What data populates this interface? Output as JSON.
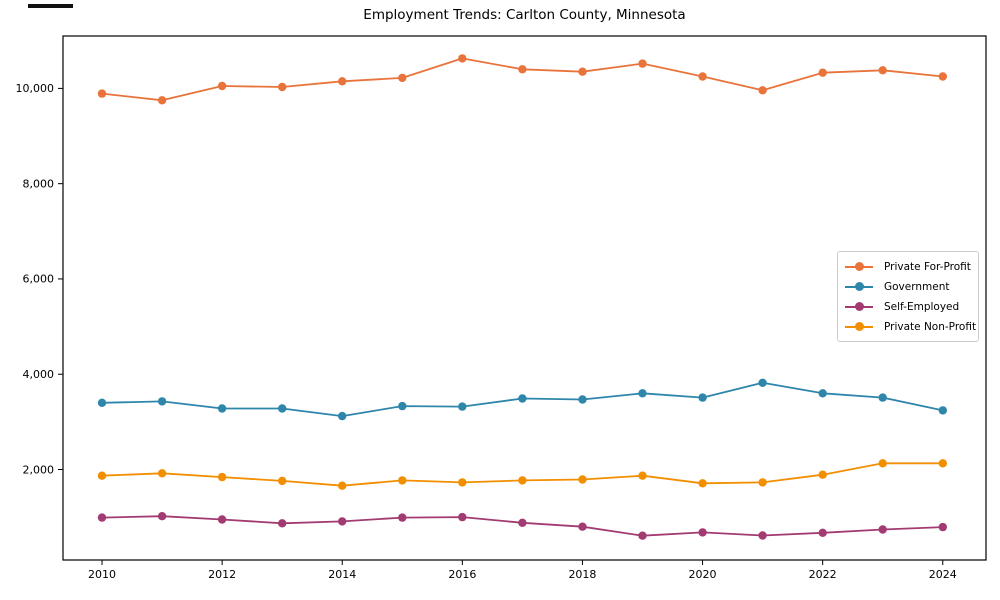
{
  "chart_data": {
    "type": "line",
    "title": "Employment Trends: Carlton County, Minnesota",
    "xlabel": "",
    "ylabel": "",
    "grid": false,
    "legend_position": "center right",
    "x": [
      2010,
      2011,
      2012,
      2013,
      2014,
      2015,
      2016,
      2017,
      2018,
      2019,
      2020,
      2021,
      2022,
      2023,
      2024
    ],
    "series": [
      {
        "name": "Private For-Profit",
        "color": "#E8743B",
        "values": [
          9890,
          9750,
          10050,
          10030,
          10150,
          10220,
          10630,
          10400,
          10350,
          10520,
          10250,
          9960,
          10330,
          10380,
          10250
        ]
      },
      {
        "name": "Government",
        "color": "#2E86AB",
        "values": [
          3400,
          3430,
          3280,
          3280,
          3120,
          3330,
          3320,
          3490,
          3470,
          3600,
          3510,
          3820,
          3600,
          3510,
          3240
        ]
      },
      {
        "name": "Self-Employed",
        "color": "#A23B72",
        "values": [
          990,
          1020,
          950,
          870,
          910,
          990,
          1000,
          880,
          800,
          610,
          680,
          615,
          670,
          740,
          790
        ]
      },
      {
        "name": "Private Non-Profit",
        "color": "#F18F01",
        "values": [
          1870,
          1920,
          1840,
          1760,
          1660,
          1770,
          1730,
          1770,
          1790,
          1870,
          1710,
          1730,
          1890,
          2130,
          2130
        ]
      }
    ],
    "xticks": {
      "values": [
        2010,
        2012,
        2014,
        2016,
        2018,
        2020,
        2022,
        2024
      ],
      "labels": [
        "2010",
        "2012",
        "2014",
        "2016",
        "2018",
        "2020",
        "2022",
        "2024"
      ]
    },
    "yticks": {
      "values": [
        2000,
        4000,
        6000,
        8000,
        10000
      ],
      "labels": [
        "2,000",
        "4,000",
        "6,000",
        "8,000",
        "10,000"
      ]
    },
    "xlim": [
      2009.35,
      2024.72
    ],
    "ylim": [
      100,
      11100
    ]
  }
}
